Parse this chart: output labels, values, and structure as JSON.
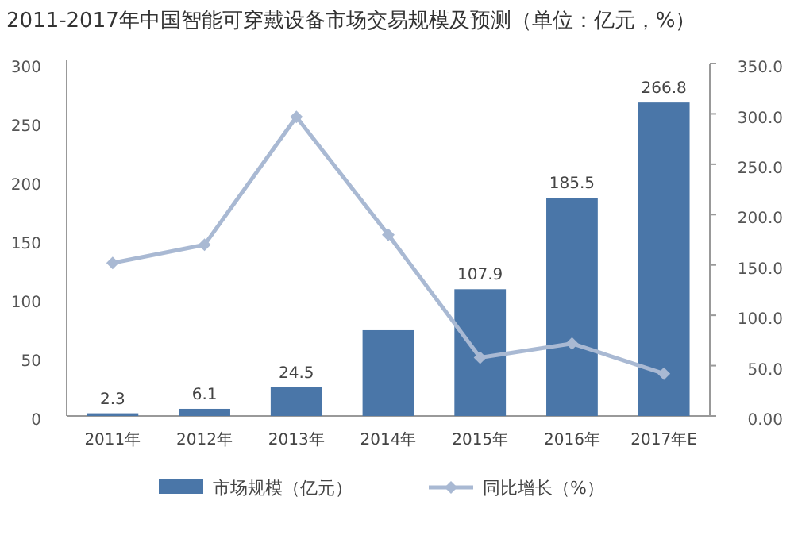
{
  "chart_data": {
    "type": "bar",
    "title": "2011-2017年中国智能可穿戴设备市场交易规模及预测（单位：亿元，%）",
    "categories": [
      "2011年",
      "2012年",
      "2013年",
      "2014年",
      "2015年",
      "2016年",
      "2017年E"
    ],
    "series": [
      {
        "name": "市场规模（亿元）",
        "type": "bar",
        "color": "#4a76a8",
        "values": [
          2.3,
          6.1,
          24.5,
          73,
          107.9,
          185.5,
          266.8
        ],
        "value_labels": [
          "2.3",
          "6.1",
          "24.5",
          null,
          "107.9",
          "185.5",
          "266.8"
        ]
      },
      {
        "name": "同比增长（%）",
        "type": "line",
        "axis": "y2",
        "color": "#a9b9d3",
        "marker": "diamond",
        "values": [
          152,
          170,
          297,
          180,
          58,
          72,
          42
        ]
      }
    ],
    "ylim": [
      0,
      300
    ],
    "yticks": [
      0,
      50,
      100,
      150,
      200,
      250,
      300
    ],
    "y2lim": [
      0,
      350
    ],
    "y2ticks": [
      {
        "value": 0,
        "label": "0.00"
      },
      {
        "value": 50,
        "label": "50.0"
      },
      {
        "value": 100,
        "label": "100.0"
      },
      {
        "value": 150,
        "label": "150.0"
      },
      {
        "value": 200,
        "label": "200.0"
      },
      {
        "value": 250,
        "label": "250.0"
      },
      {
        "value": 300,
        "label": "300.0"
      },
      {
        "value": 350,
        "label": "350.0"
      }
    ],
    "grid": false,
    "legend": "bottom"
  }
}
